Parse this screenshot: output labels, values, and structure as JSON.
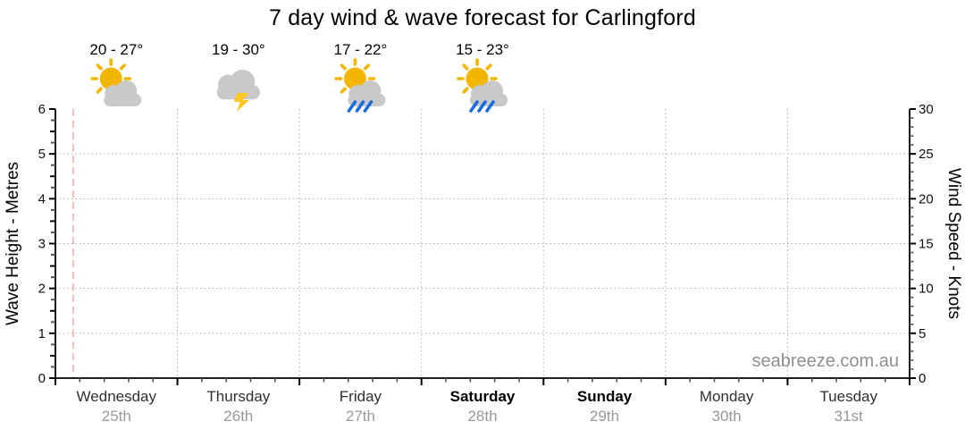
{
  "page": {
    "watermark": "seabreeze.com.au"
  },
  "chart_data": {
    "type": "line",
    "title": "7 day wind & wave forecast for Carlingford",
    "series": [],
    "grid": true,
    "legend": null,
    "y_left": {
      "label": "Wave Height - Metres",
      "min": 0,
      "max": 6,
      "ticks": [
        0,
        1,
        2,
        3,
        4,
        5,
        6
      ],
      "minor_step": 0.25
    },
    "y_right": {
      "label": "Wind Speed - Knots",
      "min": 0,
      "max": 30,
      "ticks": [
        0,
        5,
        10,
        15,
        20,
        25,
        30
      ],
      "minor_step": 1
    },
    "x": {
      "minor_divisions_per_day": 5,
      "days": [
        {
          "name": "Wednesday",
          "date": "25th",
          "weekend": false
        },
        {
          "name": "Thursday",
          "date": "26th",
          "weekend": false
        },
        {
          "name": "Friday",
          "date": "27th",
          "weekend": false
        },
        {
          "name": "Saturday",
          "date": "28th",
          "weekend": true
        },
        {
          "name": "Sunday",
          "date": "29th",
          "weekend": true
        },
        {
          "name": "Monday",
          "date": "30th",
          "weekend": false
        },
        {
          "name": "Tuesday",
          "date": "31st",
          "weekend": false
        }
      ]
    },
    "forecast_row": [
      {
        "day": "Wednesday",
        "temps": "20 - 27°",
        "icon": "partly-cloudy-icon"
      },
      {
        "day": "Thursday",
        "temps": "19 - 30°",
        "icon": "thunderstorm-icon"
      },
      {
        "day": "Friday",
        "temps": "17 - 22°",
        "icon": "rain-showers-icon"
      },
      {
        "day": "Saturday",
        "temps": "15 - 23°",
        "icon": "rain-showers-icon"
      }
    ],
    "now_marker_day_fraction": 0.146,
    "colors": {
      "sun": "#F2B600",
      "cloud": "#C9C9C9",
      "lightning": "#FFC81E",
      "rain": "#1B6BE0",
      "now_line": "#F6ACAC",
      "grid_line": "#ACACAC",
      "axis": "#000000",
      "tick_minor": "#555555",
      "day_label": "#303030",
      "weekend_label": "#000000",
      "date_label": "#999999",
      "temps_label": "#000000",
      "watermark": "#8F8F8F"
    }
  }
}
